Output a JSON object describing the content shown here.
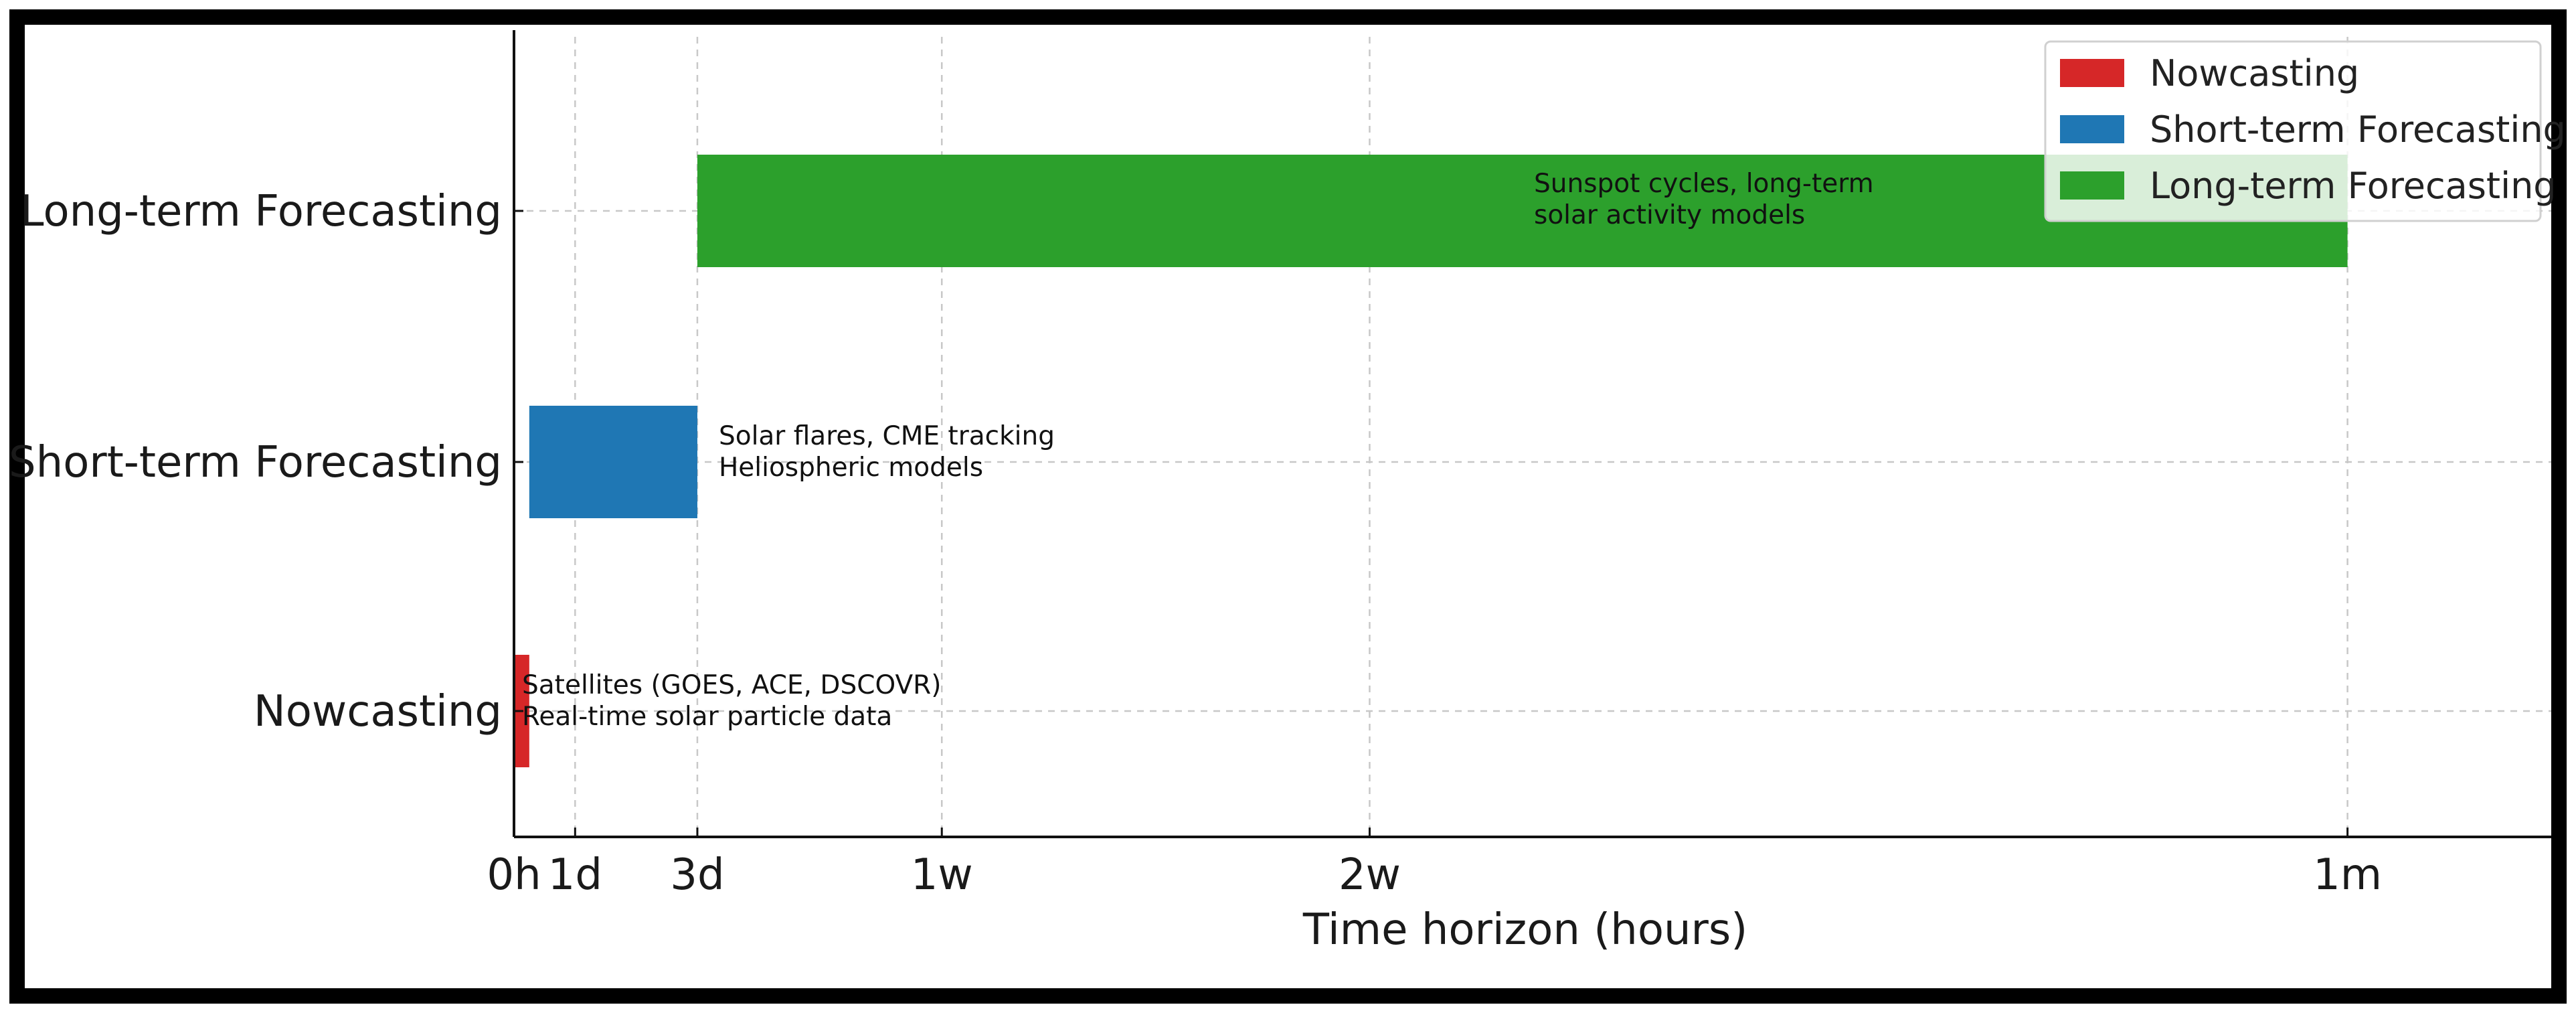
{
  "chart_data": {
    "type": "bar",
    "orientation": "horizontal",
    "categories": [
      "Nowcasting",
      "Short-term Forecasting",
      "Long-term Forecasting"
    ],
    "series": [
      {
        "name": "Nowcasting",
        "color": "#d62728",
        "start": 0,
        "end": 6,
        "annotation": [
          "Satellites (GOES, ACE, DSCOVR)",
          "Real-time solar particle data"
        ]
      },
      {
        "name": "Short-term Forecasting",
        "color": "#1f77b4",
        "start": 6,
        "end": 72,
        "annotation": [
          "Solar flares, CME tracking",
          "Heliospheric models"
        ]
      },
      {
        "name": "Long-term Forecasting",
        "color": "#2ca02c",
        "start": 72,
        "end": 720,
        "annotation": [
          "Sunspot cycles, long-term",
          "solar activity models"
        ]
      }
    ],
    "xticks": [
      {
        "value": 0,
        "label": "0h"
      },
      {
        "value": 24,
        "label": "1d"
      },
      {
        "value": 72,
        "label": "3d"
      },
      {
        "value": 168,
        "label": "1w"
      },
      {
        "value": 336,
        "label": "2w"
      },
      {
        "value": 720,
        "label": "1m"
      }
    ],
    "xlabel": "Time horizon (hours)",
    "ylabel": "",
    "title": "",
    "xlim": [
      0,
      800
    ],
    "grid": true,
    "grid_style": "dashed",
    "legend_position": "top-right"
  }
}
